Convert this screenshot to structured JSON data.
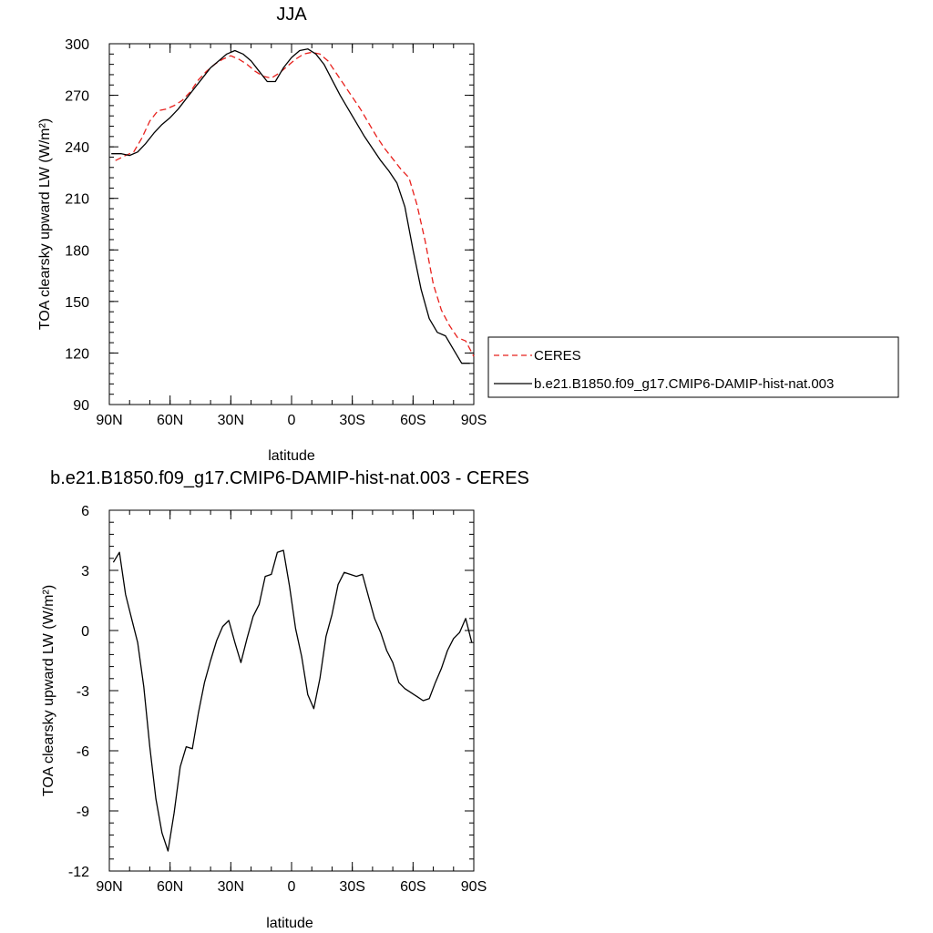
{
  "chart_data": [
    {
      "type": "line",
      "title": "JJA",
      "xlabel": "latitude",
      "ylabel": "TOA clearsky upward LW (W/m²)",
      "xlim": [
        90,
        -90
      ],
      "ylim": [
        90,
        300
      ],
      "xticks": [
        90,
        60,
        30,
        0,
        -30,
        -60,
        -90
      ],
      "xtick_labels": [
        "90N",
        "60N",
        "30N",
        "0",
        "30S",
        "60S",
        "90S"
      ],
      "yticks": [
        90,
        120,
        150,
        180,
        210,
        240,
        270,
        300
      ],
      "ytick_labels": [
        "90",
        "120",
        "150",
        "180",
        "210",
        "240",
        "270",
        "300"
      ],
      "legend": "right",
      "series": [
        {
          "name": "CERES",
          "color": "#e8201c",
          "style": "dashed",
          "x": [
            87,
            82,
            78,
            74,
            70,
            66,
            62,
            58,
            54,
            50,
            46,
            42,
            38,
            34,
            30,
            26,
            22,
            18,
            14,
            10,
            6,
            2,
            -2,
            -6,
            -10,
            -14,
            -18,
            -22,
            -26,
            -30,
            -34,
            -38,
            -42,
            -46,
            -50,
            -54,
            -58,
            -62,
            -66,
            -70,
            -74,
            -78,
            -82,
            -86,
            -90
          ],
          "values": [
            232,
            235,
            237,
            245,
            255,
            261,
            262,
            264,
            267,
            272,
            279,
            284,
            288,
            291,
            293,
            291,
            288,
            284,
            281,
            280,
            283,
            287,
            291,
            294,
            295,
            294,
            290,
            283,
            276,
            269,
            262,
            254,
            246,
            239,
            233,
            227,
            222,
            206,
            185,
            160,
            145,
            136,
            129,
            127,
            118
          ]
        },
        {
          "name": "b.e21.B1850.f09_g17.CMIP6-DAMIP-hist-nat.003",
          "color": "#000000",
          "style": "solid",
          "x": [
            89,
            84,
            80,
            76,
            72,
            68,
            64,
            60,
            56,
            52,
            48,
            44,
            40,
            36,
            32,
            28,
            24,
            20,
            16,
            12,
            8,
            4,
            0,
            -4,
            -8,
            -12,
            -16,
            -20,
            -24,
            -28,
            -32,
            -36,
            -40,
            -44,
            -48,
            -52,
            -56,
            -60,
            -64,
            -68,
            -72,
            -76,
            -80,
            -84,
            -88
          ],
          "values": [
            236,
            236,
            235,
            237,
            242,
            248,
            253,
            257,
            262,
            268,
            274,
            280,
            286,
            290,
            294,
            296,
            294,
            290,
            284,
            278,
            278,
            286,
            292,
            296,
            297,
            294,
            288,
            279,
            270,
            262,
            254,
            246,
            239,
            232,
            226,
            219,
            205,
            180,
            157,
            140,
            132,
            130,
            122,
            114,
            114
          ]
        }
      ]
    },
    {
      "type": "line",
      "title": "b.e21.B1850.f09_g17.CMIP6-DAMIP-hist-nat.003 - CERES",
      "xlabel": "latitude",
      "ylabel": "TOA clearsky upward LW (W/m²)",
      "xlim": [
        90,
        -90
      ],
      "ylim": [
        -12,
        6
      ],
      "xticks": [
        90,
        60,
        30,
        0,
        -30,
        -60,
        -90
      ],
      "xtick_labels": [
        "90N",
        "60N",
        "30N",
        "0",
        "30S",
        "60S",
        "90S"
      ],
      "yticks": [
        -12,
        -9,
        -6,
        -3,
        0,
        3,
        6
      ],
      "ytick_labels": [
        "-12",
        "-9",
        "-6",
        "-3",
        "0",
        "3",
        "6"
      ],
      "series": [
        {
          "color": "#000000",
          "style": "solid",
          "x": [
            88,
            85,
            82,
            79,
            76,
            73,
            70,
            67,
            64,
            61,
            58,
            55,
            52,
            49,
            46,
            43,
            40,
            37,
            34,
            31,
            28,
            25,
            22,
            19,
            16,
            13,
            10,
            7,
            4,
            1,
            -2,
            -5,
            -8,
            -11,
            -14,
            -17,
            -20,
            -23,
            -26,
            -29,
            -32,
            -35,
            -38,
            -41,
            -44,
            -47,
            -50,
            -53,
            -56,
            -59,
            -62,
            -65,
            -68,
            -71,
            -74,
            -77,
            -80,
            -83,
            -86,
            -89
          ],
          "values": [
            3.4,
            3.9,
            1.8,
            0.6,
            -0.6,
            -2.8,
            -5.8,
            -8.4,
            -10.1,
            -11.0,
            -9.1,
            -6.8,
            -5.8,
            -5.9,
            -4.1,
            -2.6,
            -1.5,
            -0.5,
            0.2,
            0.5,
            -0.6,
            -1.6,
            -0.4,
            0.7,
            1.3,
            2.7,
            2.8,
            3.9,
            4.0,
            2.2,
            0.1,
            -1.3,
            -3.2,
            -3.9,
            -2.4,
            -0.3,
            0.8,
            2.3,
            2.9,
            2.8,
            2.7,
            2.8,
            1.7,
            0.6,
            -0.1,
            -1.0,
            -1.6,
            -2.6,
            -2.9,
            -3.1,
            -3.3,
            -3.5,
            -3.4,
            -2.6,
            -1.9,
            -1.0,
            -0.4,
            -0.1,
            0.6,
            -0.6
          ]
        }
      ]
    }
  ]
}
